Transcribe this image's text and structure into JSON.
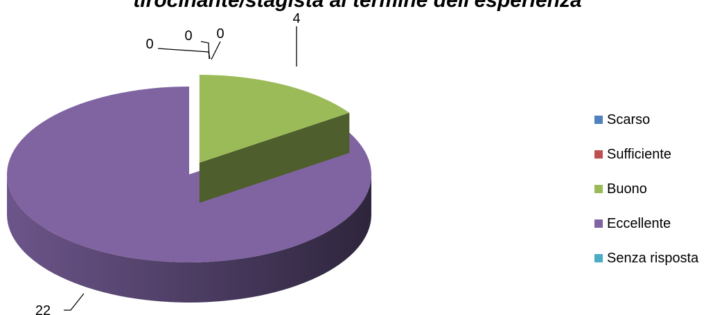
{
  "chart_data": {
    "type": "pie",
    "title": "tirocinante/stagista al termine dell'esperienza",
    "categories": [
      "Scarso",
      "Sufficiente",
      "Buono",
      "Eccellente",
      "Senza risposta"
    ],
    "values": [
      0,
      0,
      4,
      22,
      0
    ],
    "data_labels": [
      "0",
      "0",
      "4",
      "22",
      "0"
    ],
    "colors": [
      "#4F81BD",
      "#C0504D",
      "#9BBB59",
      "#8064A2",
      "#4BACC6"
    ],
    "exploded": [
      false,
      false,
      true,
      false,
      false
    ],
    "style": "3d",
    "legend_position": "right"
  }
}
